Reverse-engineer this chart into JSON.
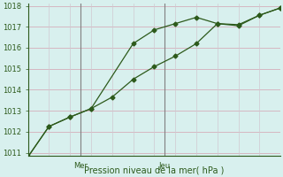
{
  "line1_x": [
    0,
    1,
    2,
    3,
    5,
    6,
    7,
    8,
    9,
    10,
    11,
    12
  ],
  "line1_y": [
    1010.8,
    1012.25,
    1012.7,
    1013.1,
    1016.2,
    1016.85,
    1017.15,
    1017.45,
    1017.15,
    1017.05,
    1017.55,
    1017.9
  ],
  "line2_x": [
    0,
    1,
    2,
    3,
    4,
    5,
    6,
    7,
    8,
    9,
    10,
    11,
    12
  ],
  "line2_y": [
    1010.8,
    1012.25,
    1012.7,
    1013.1,
    1013.65,
    1014.5,
    1015.1,
    1015.6,
    1016.2,
    1017.15,
    1017.1,
    1017.55,
    1017.9
  ],
  "ylim": [
    1011,
    1018
  ],
  "xlim": [
    0,
    12
  ],
  "yticks": [
    1011,
    1012,
    1013,
    1014,
    1015,
    1016,
    1017,
    1018
  ],
  "vline1_x": 2.5,
  "vline2_x": 6.5,
  "day1_label": "Mer",
  "day1_x": 2.5,
  "day2_label": "Jeu",
  "day2_x": 6.5,
  "xlabel": "Pression niveau de la mer( hPa )",
  "line_color": "#2d5a1b",
  "marker": "D",
  "marker_size": 2.5,
  "bg_color": "#d8f0ee",
  "grid_color_h": "#d4a0b0",
  "grid_color_v": "#d0c8d0",
  "vline_color": "#808080",
  "text_color": "#2d5a1b",
  "spine_color": "#2d5a1b",
  "ylabel_fontsize": 6,
  "xlabel_fontsize": 7,
  "tick_fontsize": 6
}
